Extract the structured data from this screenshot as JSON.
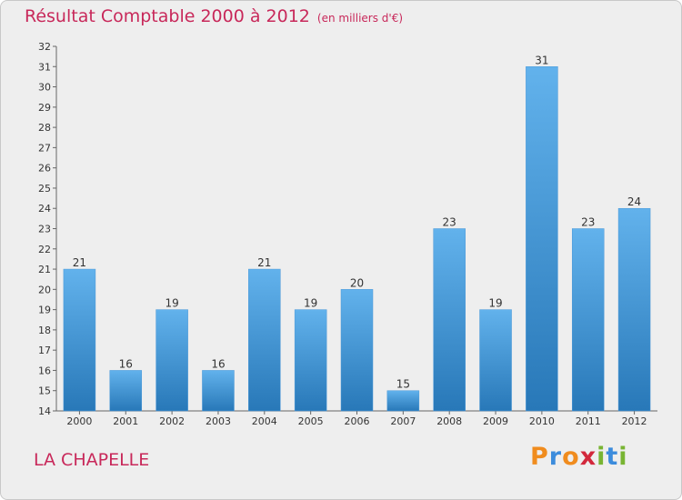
{
  "header": {
    "title": "Résultat Comptable 2000 à 2012",
    "unit": "(en milliers d'€)"
  },
  "footer": {
    "commune": "LA CHAPELLE",
    "logo_letters": [
      "P",
      "r",
      "o",
      "x",
      "i",
      "t",
      "i"
    ]
  },
  "colors": {
    "title": "#c8285a",
    "bar_top": "#62b2ec",
    "bar_bottom": "#2878b8",
    "logo": [
      "#f08c1e",
      "#3c8cdc",
      "#f08c1e",
      "#d2283c",
      "#78b432",
      "#3c8cdc",
      "#78b432"
    ]
  },
  "chart_data": {
    "type": "bar",
    "title": "Résultat Comptable 2000 à 2012",
    "xlabel": "",
    "ylabel": "",
    "ylim": [
      14,
      32
    ],
    "yticks": [
      14,
      15,
      16,
      17,
      18,
      19,
      20,
      21,
      22,
      23,
      24,
      25,
      26,
      27,
      28,
      29,
      30,
      31,
      32
    ],
    "grid": false,
    "categories": [
      "2000",
      "2001",
      "2002",
      "2003",
      "2004",
      "2005",
      "2006",
      "2007",
      "2008",
      "2009",
      "2010",
      "2011",
      "2012"
    ],
    "values": [
      21,
      16,
      19,
      16,
      21,
      19,
      20,
      15,
      23,
      19,
      31,
      23,
      24
    ]
  }
}
